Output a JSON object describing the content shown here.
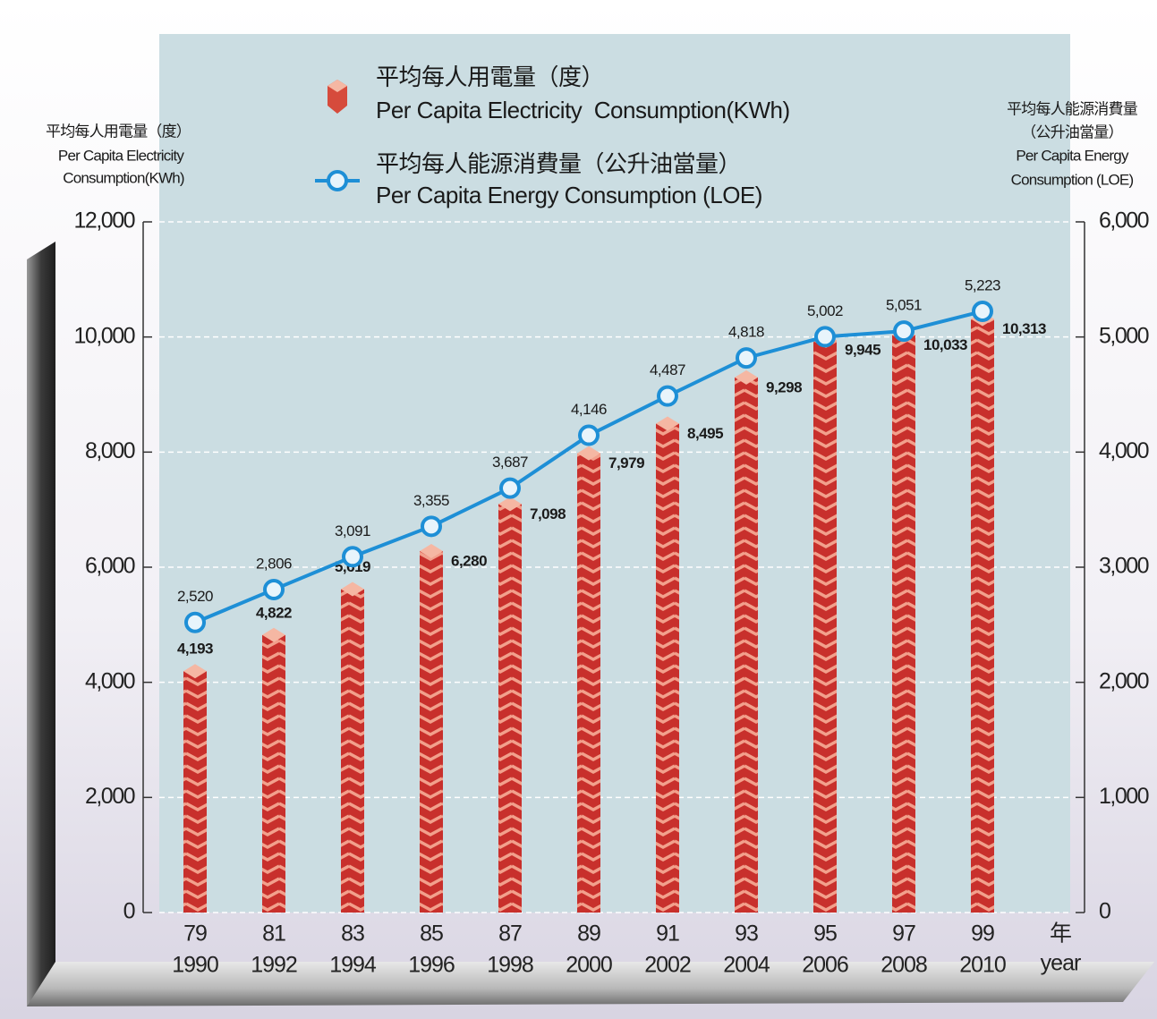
{
  "chart_data": {
    "type": "bar_line",
    "ylabel": [
      "平均每人用電量（度）",
      "Per Capita Electricity",
      "Consumption(KWh)"
    ],
    "y2label": [
      "平均每人能源消費量",
      "（公升油當量）",
      "Per Capita Energy",
      "Consumption (LOE)"
    ],
    "xlabel": [
      "年",
      "year"
    ],
    "categories": [
      "79",
      "81",
      "83",
      "85",
      "87",
      "89",
      "91",
      "93",
      "95",
      "97",
      "99"
    ],
    "categories_ad": [
      "1990",
      "1992",
      "1994",
      "1996",
      "1998",
      "2000",
      "2002",
      "2004",
      "2006",
      "2008",
      "2010"
    ],
    "series": [
      {
        "name": "平均每人用電量（度）",
        "name_en": "Per Capita Electricity  Consumption(KWh)",
        "type": "bar",
        "color": "#c8302c",
        "axis": "y",
        "values": [
          4193,
          4822,
          5619,
          6280,
          7098,
          7979,
          8495,
          9298,
          9945,
          10033,
          10313
        ],
        "value_labels": [
          "4,193",
          "4,822",
          "5,619",
          "6,280",
          "7,098",
          "7,979",
          "8,495",
          "9,298",
          "9,945",
          "10,033",
          "10,313"
        ]
      },
      {
        "name": "平均每人能源消費量（公升油當量）",
        "name_en": "Per Capita Energy Consumption (LOE)",
        "type": "line",
        "color": "#1e8fd6",
        "axis": "y2",
        "values": [
          2520,
          2806,
          3091,
          3355,
          3687,
          4146,
          4487,
          4818,
          5002,
          5051,
          5223
        ],
        "value_labels": [
          "2,520",
          "2,806",
          "3,091",
          "3,355",
          "3,687",
          "4,146",
          "4,487",
          "4,818",
          "5,002",
          "5,051",
          "5,223"
        ]
      }
    ],
    "ylim": [
      0,
      12000
    ],
    "yticks": [
      0,
      {
        "value": 2000,
        "label": "2,000"
      },
      {
        "value": 4000,
        "label": "4,000"
      },
      {
        "value": 6000,
        "label": "6,000"
      },
      {
        "value": 8000,
        "label": "8,000"
      },
      {
        "value": 10000,
        "label": "10,000"
      },
      {
        "value": 12000,
        "label": "12,000"
      }
    ],
    "y2lim": [
      0,
      6000
    ],
    "y2ticks": [
      0,
      {
        "value": 1000,
        "label": "1,000"
      },
      {
        "value": 2000,
        "label": "2,000"
      },
      {
        "value": 3000,
        "label": "3,000"
      },
      {
        "value": 4000,
        "label": "4,000"
      },
      {
        "value": 5000,
        "label": "5,000"
      },
      {
        "value": 6000,
        "label": "6,000"
      }
    ],
    "grid": true
  }
}
